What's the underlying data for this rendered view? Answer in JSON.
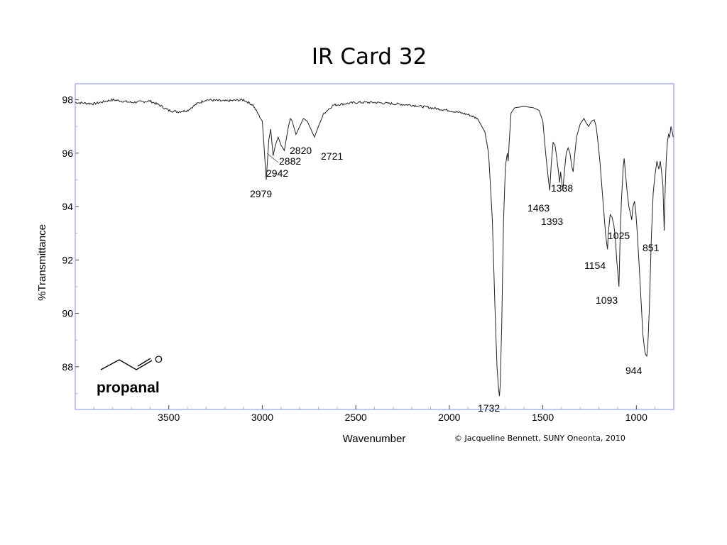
{
  "title": "IR Card 32",
  "copyright": "© Jacqueline Bennett, SUNY Oneonta, 2010",
  "molecule": {
    "name": "propanal",
    "atom_label": "O",
    "structure_icon": "propanal-skeletal-structure-icon"
  },
  "colors": {
    "frame": "#7f8fd6",
    "trace": "#222222",
    "minor_tick": "#e8a0b8"
  },
  "chart_data": {
    "type": "line",
    "title": "IR Card 32",
    "xlabel": "Wavenumber",
    "ylabel": "%Transmittance",
    "xlim": [
      4000,
      800
    ],
    "x_reversed": true,
    "ylim": [
      86.4,
      98.6
    ],
    "x_ticks": [
      3500,
      3000,
      2500,
      2000,
      1500,
      1000
    ],
    "y_ticks": [
      88,
      90,
      92,
      94,
      96,
      98
    ],
    "grid": false,
    "legend": "none",
    "series": [
      {
        "points": [
          [
            4000,
            97.9
          ],
          [
            3900,
            97.85
          ],
          [
            3800,
            98.0
          ],
          [
            3700,
            97.9
          ],
          [
            3600,
            97.95
          ],
          [
            3550,
            97.8
          ],
          [
            3500,
            97.6
          ],
          [
            3450,
            97.55
          ],
          [
            3400,
            97.6
          ],
          [
            3350,
            97.85
          ],
          [
            3300,
            98.0
          ],
          [
            3200,
            97.95
          ],
          [
            3100,
            98.0
          ],
          [
            3050,
            97.8
          ],
          [
            3000,
            97.2
          ],
          [
            2990,
            96.2
          ],
          [
            2979,
            95.0
          ],
          [
            2965,
            96.5
          ],
          [
            2955,
            96.9
          ],
          [
            2942,
            95.9
          ],
          [
            2930,
            96.3
          ],
          [
            2915,
            96.6
          ],
          [
            2900,
            96.3
          ],
          [
            2882,
            96.1
          ],
          [
            2870,
            96.6
          ],
          [
            2860,
            97.0
          ],
          [
            2850,
            97.3
          ],
          [
            2840,
            97.2
          ],
          [
            2820,
            96.7
          ],
          [
            2800,
            97.0
          ],
          [
            2780,
            97.3
          ],
          [
            2760,
            97.2
          ],
          [
            2740,
            96.9
          ],
          [
            2721,
            96.6
          ],
          [
            2700,
            97.0
          ],
          [
            2670,
            97.5
          ],
          [
            2620,
            97.8
          ],
          [
            2500,
            97.9
          ],
          [
            2400,
            97.9
          ],
          [
            2300,
            97.85
          ],
          [
            2200,
            97.8
          ],
          [
            2100,
            97.7
          ],
          [
            2000,
            97.6
          ],
          [
            1900,
            97.45
          ],
          [
            1850,
            97.3
          ],
          [
            1810,
            96.8
          ],
          [
            1790,
            96.0
          ],
          [
            1770,
            93.5
          ],
          [
            1755,
            90.0
          ],
          [
            1745,
            88.0
          ],
          [
            1737,
            87.2
          ],
          [
            1732,
            86.9
          ],
          [
            1728,
            87.3
          ],
          [
            1720,
            89.5
          ],
          [
            1710,
            93.5
          ],
          [
            1700,
            95.5
          ],
          [
            1690,
            96.0
          ],
          [
            1685,
            95.7
          ],
          [
            1680,
            96.4
          ],
          [
            1670,
            97.5
          ],
          [
            1650,
            97.7
          ],
          [
            1600,
            97.75
          ],
          [
            1550,
            97.7
          ],
          [
            1520,
            97.6
          ],
          [
            1500,
            97.2
          ],
          [
            1485,
            96.0
          ],
          [
            1470,
            95.0
          ],
          [
            1463,
            94.6
          ],
          [
            1455,
            95.6
          ],
          [
            1445,
            96.4
          ],
          [
            1435,
            96.3
          ],
          [
            1425,
            95.8
          ],
          [
            1415,
            95.2
          ],
          [
            1410,
            94.9
          ],
          [
            1405,
            95.3
          ],
          [
            1393,
            94.6
          ],
          [
            1385,
            95.3
          ],
          [
            1375,
            96.0
          ],
          [
            1365,
            96.2
          ],
          [
            1355,
            96.0
          ],
          [
            1345,
            95.5
          ],
          [
            1338,
            95.3
          ],
          [
            1330,
            95.9
          ],
          [
            1320,
            96.6
          ],
          [
            1300,
            97.1
          ],
          [
            1280,
            97.3
          ],
          [
            1270,
            97.15
          ],
          [
            1255,
            97.0
          ],
          [
            1240,
            97.2
          ],
          [
            1225,
            97.25
          ],
          [
            1215,
            97.0
          ],
          [
            1205,
            96.4
          ],
          [
            1195,
            95.7
          ],
          [
            1185,
            94.8
          ],
          [
            1175,
            93.9
          ],
          [
            1165,
            93.0
          ],
          [
            1158,
            92.6
          ],
          [
            1154,
            92.4
          ],
          [
            1150,
            93.0
          ],
          [
            1140,
            93.7
          ],
          [
            1130,
            93.6
          ],
          [
            1120,
            93.3
          ],
          [
            1112,
            92.8
          ],
          [
            1105,
            92.0
          ],
          [
            1100,
            91.6
          ],
          [
            1093,
            91.0
          ],
          [
            1088,
            92.5
          ],
          [
            1080,
            94.2
          ],
          [
            1070,
            95.5
          ],
          [
            1065,
            95.8
          ],
          [
            1060,
            95.4
          ],
          [
            1050,
            94.6
          ],
          [
            1040,
            94.0
          ],
          [
            1030,
            93.7
          ],
          [
            1025,
            93.5
          ],
          [
            1018,
            94.0
          ],
          [
            1010,
            94.2
          ],
          [
            1003,
            93.8
          ],
          [
            995,
            93.0
          ],
          [
            985,
            91.8
          ],
          [
            975,
            90.5
          ],
          [
            965,
            89.2
          ],
          [
            955,
            88.6
          ],
          [
            950,
            88.45
          ],
          [
            944,
            88.4
          ],
          [
            938,
            88.9
          ],
          [
            930,
            90.3
          ],
          [
            920,
            92.8
          ],
          [
            910,
            94.5
          ],
          [
            900,
            95.2
          ],
          [
            890,
            95.7
          ],
          [
            880,
            95.4
          ],
          [
            872,
            95.7
          ],
          [
            865,
            95.3
          ],
          [
            858,
            94.8
          ],
          [
            854,
            93.8
          ],
          [
            851,
            93.1
          ],
          [
            846,
            94.6
          ],
          [
            840,
            95.8
          ],
          [
            834,
            96.4
          ],
          [
            828,
            96.7
          ],
          [
            822,
            96.6
          ],
          [
            815,
            97.0
          ],
          [
            808,
            96.8
          ],
          [
            803,
            96.6
          ]
        ]
      }
    ],
    "annotations": [
      {
        "text": "2979",
        "x": 2979,
        "y": 95.0
      },
      {
        "text": "2942",
        "x": 2942,
        "y": 95.9
      },
      {
        "text": "2882",
        "x": 2882,
        "y": 96.1
      },
      {
        "text": "2820",
        "x": 2820,
        "y": 96.7
      },
      {
        "text": "2721",
        "x": 2721,
        "y": 96.6
      },
      {
        "text": "1732",
        "x": 1732,
        "y": 86.9
      },
      {
        "text": "1463",
        "x": 1463,
        "y": 94.6
      },
      {
        "text": "1393",
        "x": 1393,
        "y": 94.6
      },
      {
        "text": "1338",
        "x": 1338,
        "y": 95.3
      },
      {
        "text": "1154",
        "x": 1154,
        "y": 92.4
      },
      {
        "text": "1093",
        "x": 1093,
        "y": 91.0
      },
      {
        "text": "1025",
        "x": 1025,
        "y": 93.5
      },
      {
        "text": "851",
        "x": 851,
        "y": 93.1
      },
      {
        "text": "944",
        "x": 944,
        "y": 88.4
      }
    ]
  }
}
